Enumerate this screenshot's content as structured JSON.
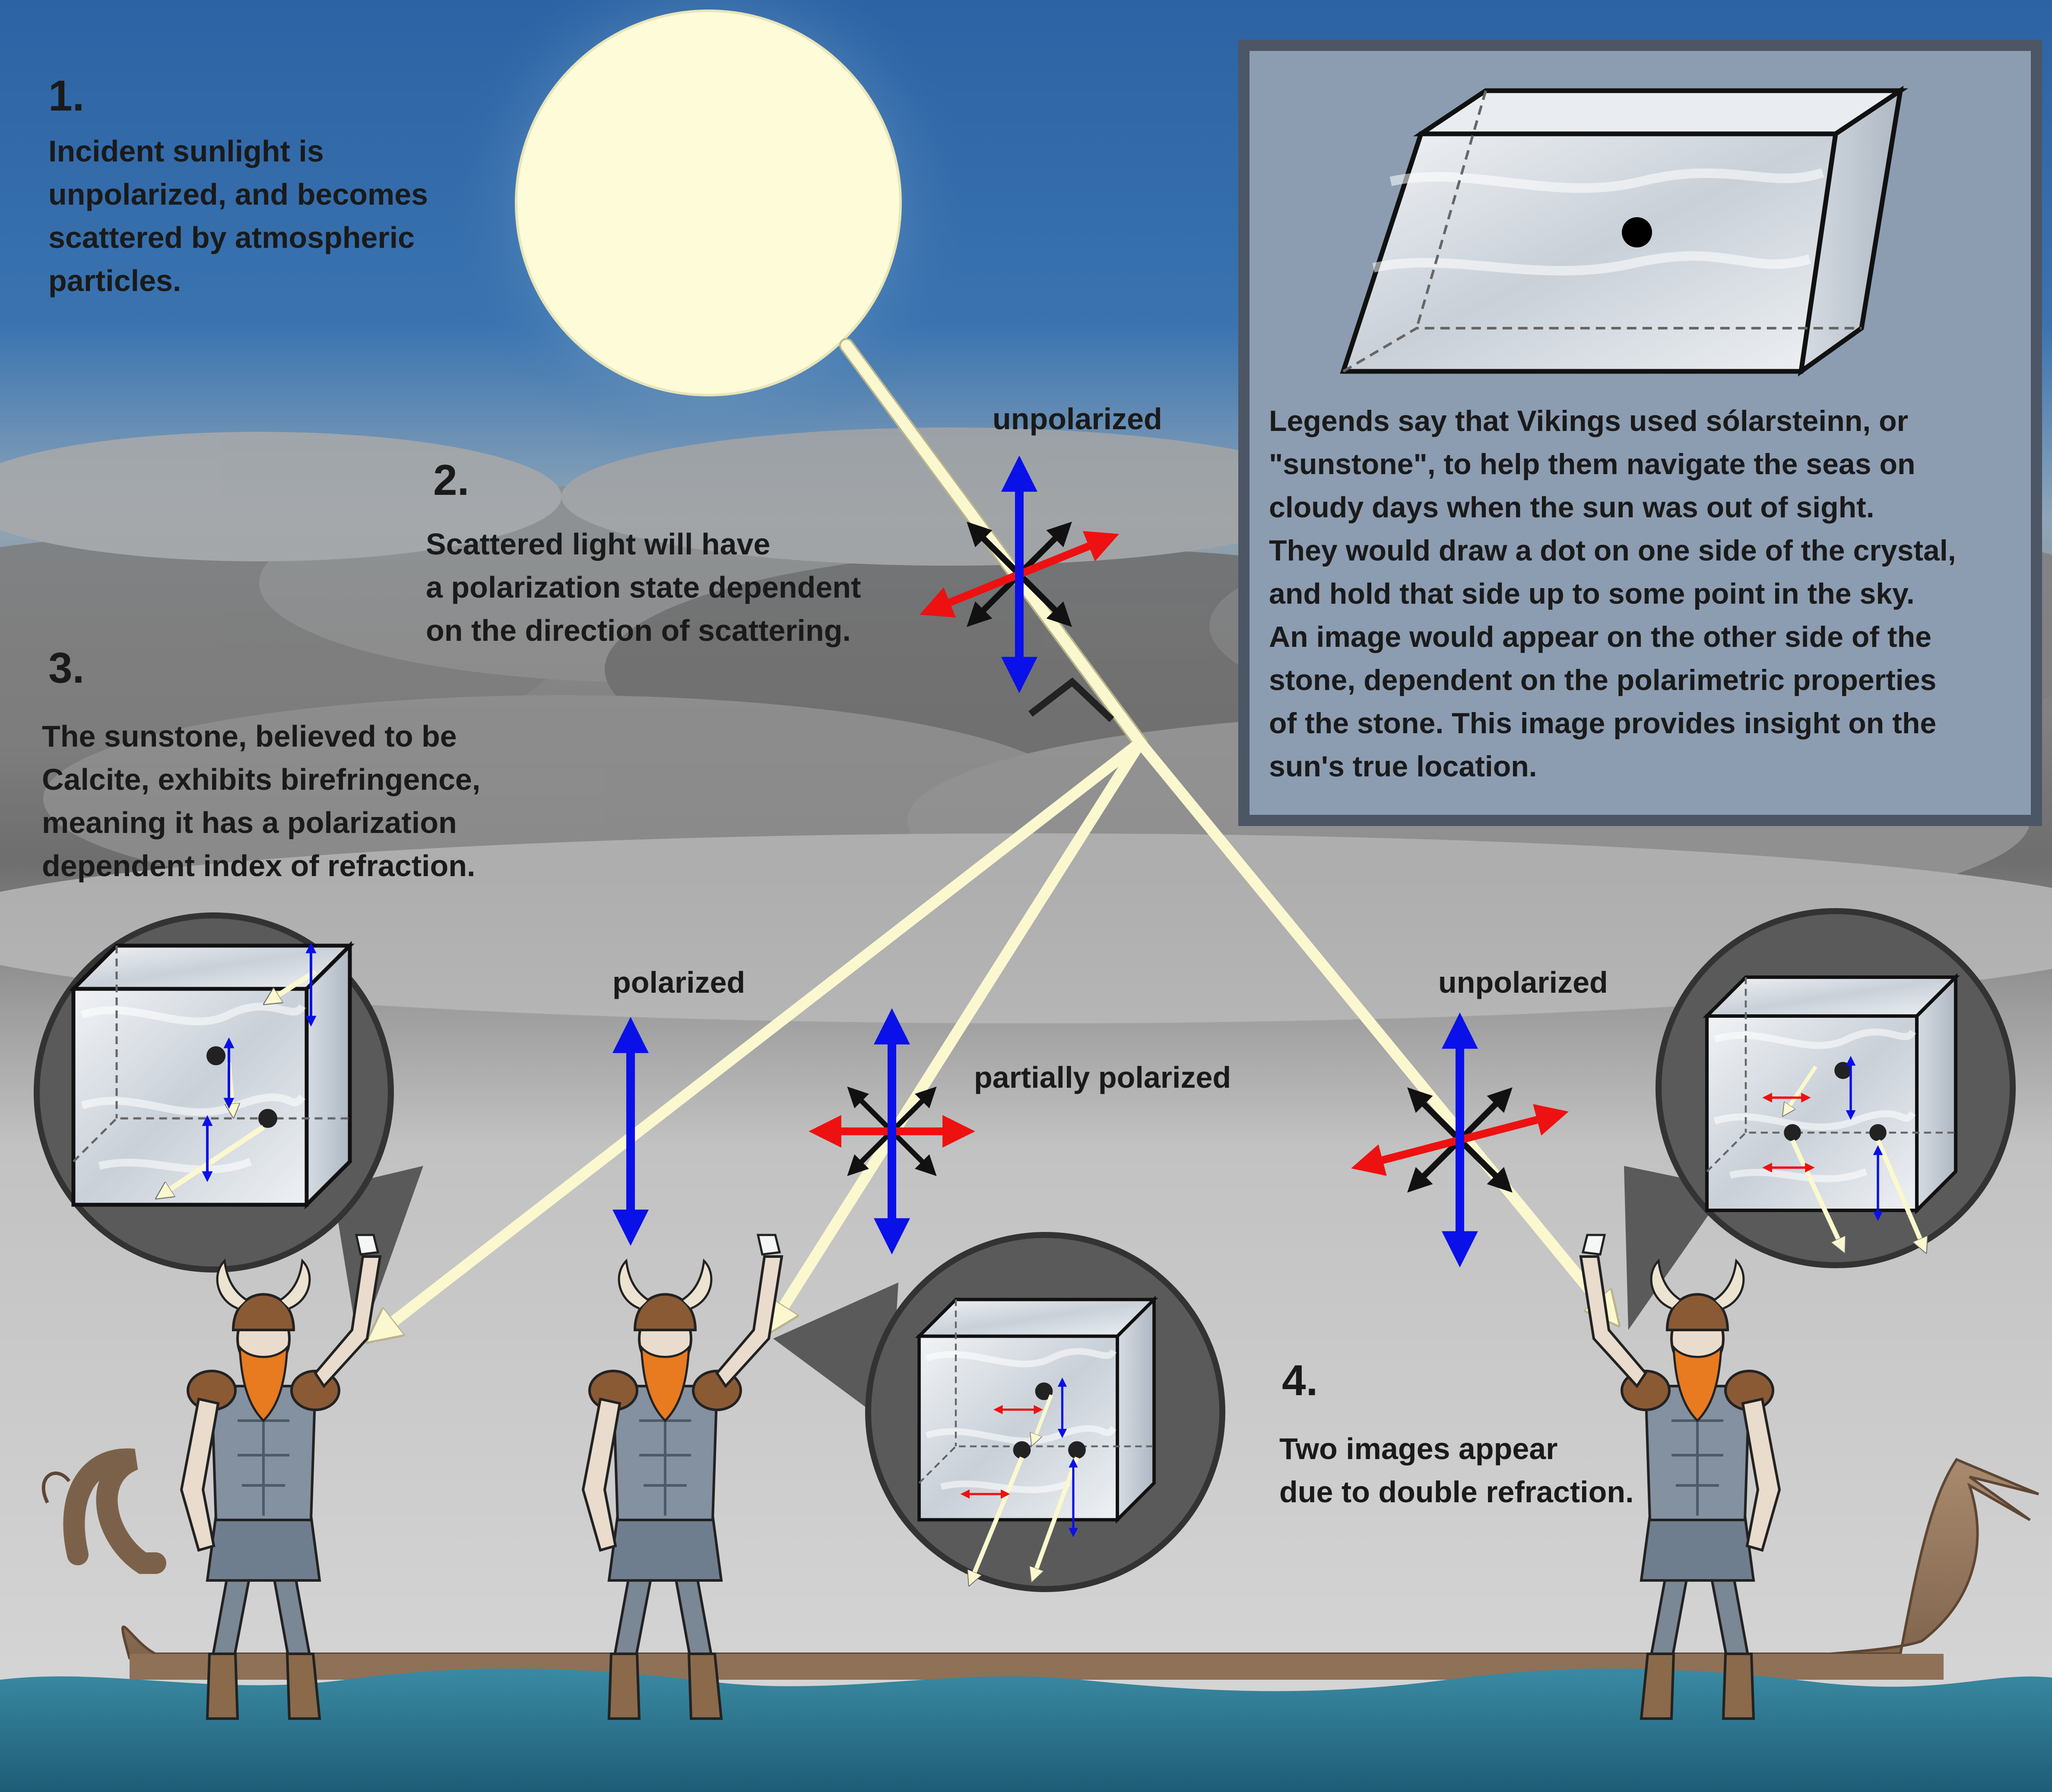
{
  "steps": {
    "step1": {
      "number": "1.",
      "lines": [
        "Incident sunlight is",
        "unpolarized, and becomes",
        "scattered by atmospheric",
        "particles."
      ]
    },
    "step2": {
      "number": "2.",
      "lines": [
        "Scattered light will have",
        "a polarization state dependent",
        "on the direction of scattering."
      ]
    },
    "step3": {
      "number": "3.",
      "lines": [
        "The sunstone, believed to be",
        "Calcite, exhibits birefringence,",
        "meaning it has a polarization",
        "dependent index of refraction."
      ]
    },
    "step4": {
      "number": "4.",
      "lines": [
        "Two images appear",
        "due to double refraction."
      ]
    }
  },
  "labels": {
    "unpolarized_top": "unpolarized",
    "polarized": "polarized",
    "partially_polarized": "partially polarized",
    "unpolarized_right": "unpolarized"
  },
  "legend": {
    "lines": [
      "Legends say that Vikings used sólarsteinn, or",
      "\"sunstone\", to help them navigate the seas on",
      "cloudy days when the sun was out of sight.",
      "They would draw a dot on one side of the crystal,",
      "and hold that side up to some point in the sky.",
      "An image would appear on the other side of the",
      "stone, dependent on the polarimetric properties",
      "of the stone. This image provides insight on the",
      "sun's true location."
    ]
  },
  "colors": {
    "sky_top": "#2f67a8",
    "sky_glow": "#9cc0da",
    "cloud_dark": "#7a7a7a",
    "haze": "#d2d2d2",
    "sun": "#fdfbd8",
    "light_beam": "#fbf8cf",
    "beam_outline": "#b7b48f",
    "polarization_vertical": "#0a10e8",
    "polarization_horizontal": "#ee1111",
    "polarization_diagonal": "#111111",
    "legend_panel": "#8c9db2",
    "legend_border": "#4d5665",
    "magnifier_fill": "#5a5a5a",
    "magnifier_border": "#333333",
    "crystal": "#dfe4ea",
    "ship_hull": "#9a7c62",
    "sea": "#2a7089",
    "viking_armor": "#6f7e8e",
    "viking_beard": "#e87a1f",
    "viking_skin": "#e9dccc",
    "viking_boots": "#8a6a4a"
  },
  "icons": [
    "sun-icon",
    "calcite-crystal-icon",
    "polarization-arrows-icon",
    "magnifier-icon",
    "viking-figure-icon",
    "longship-icon",
    "right-angle-marker-icon"
  ]
}
